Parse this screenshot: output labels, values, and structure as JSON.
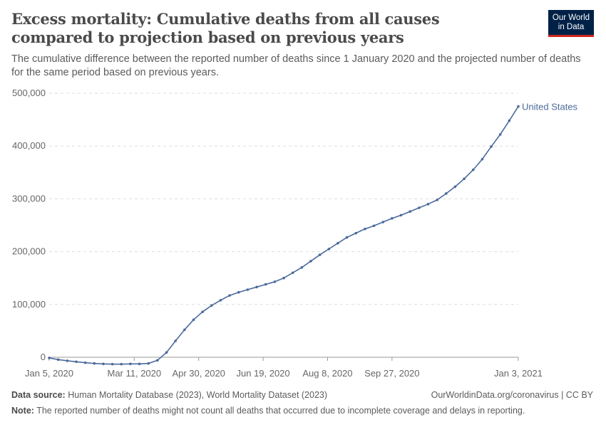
{
  "header": {
    "title": "Excess mortality: Cumulative deaths from all causes compared to projection based on previous years",
    "subtitle": "The cumulative difference between the reported number of deaths since 1 January 2020 and the projected number of deaths for the same period based on previous years.",
    "logo": "Our World in Data"
  },
  "footer": {
    "source_label": "Data source:",
    "source": "Human Mortality Database (2023), World Mortality Dataset (2023)",
    "url": "OurWorldinData.org/coronavirus | CC BY",
    "note_label": "Note:",
    "note": "The reported number of deaths might not count all deaths that occurred due to incomplete coverage and delays in reporting."
  },
  "chart_data": {
    "type": "line",
    "title": "Excess mortality: Cumulative deaths from all causes compared to projection based on previous years",
    "xlabel": "",
    "ylabel": "",
    "ylim": [
      0,
      500000
    ],
    "yticks": [
      0,
      100000,
      200000,
      300000,
      400000,
      500000
    ],
    "ytick_labels": [
      "0",
      "100,000",
      "200,000",
      "300,000",
      "400,000",
      "500,000"
    ],
    "xticks": [
      "2020-01-05",
      "2020-03-11",
      "2020-04-30",
      "2020-06-19",
      "2020-08-08",
      "2020-09-27",
      "2021-01-03"
    ],
    "xtick_labels": [
      "Jan 5, 2020",
      "Mar 11, 2020",
      "Apr 30, 2020",
      "Jun 19, 2020",
      "Aug 8, 2020",
      "Sep 27, 2020",
      "Jan 3, 2021"
    ],
    "grid": "horizontal dashed",
    "x_start": "2020-01-05",
    "x_step_days": 7,
    "series": [
      {
        "name": "United States",
        "color": "#4c6a9c",
        "values": [
          -1300,
          -4500,
          -6700,
          -8500,
          -10300,
          -11700,
          -12600,
          -13000,
          -13000,
          -12600,
          -12600,
          -11700,
          -5800,
          9000,
          31000,
          52000,
          71000,
          86000,
          98000,
          108000,
          117000,
          123000,
          128000,
          133000,
          138000,
          143000,
          150000,
          160000,
          170000,
          182000,
          194000,
          205000,
          216000,
          227000,
          235000,
          243000,
          249000,
          256000,
          263000,
          269000,
          276000,
          283000,
          290000,
          298000,
          310000,
          323000,
          338000,
          355000,
          375000,
          399000,
          422000,
          448000,
          475000
        ]
      }
    ]
  }
}
